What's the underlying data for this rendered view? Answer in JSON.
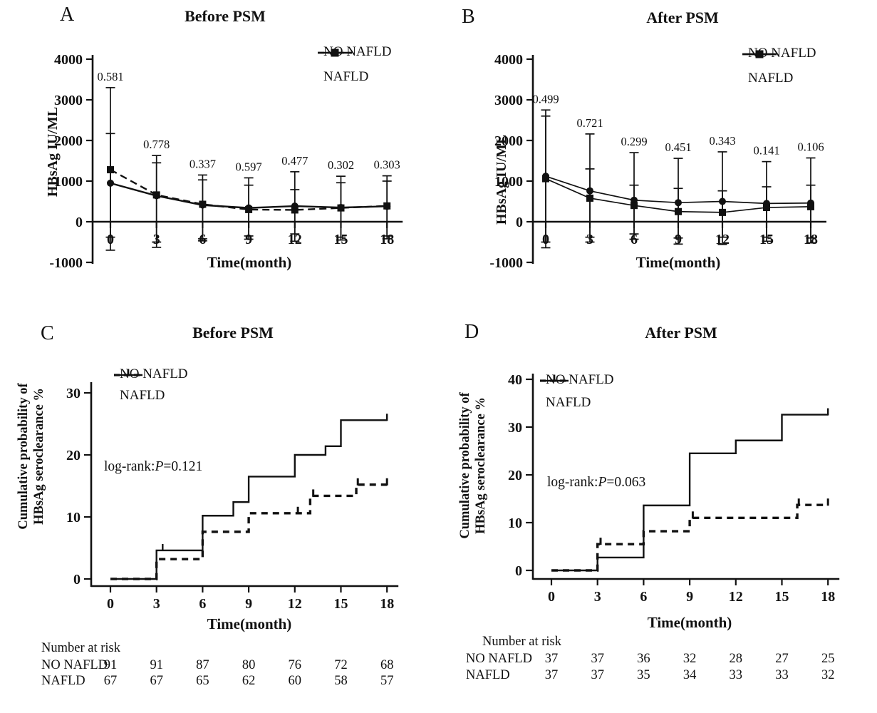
{
  "ink": "#111111",
  "background": "#ffffff",
  "chart_data": [
    {
      "id": "A",
      "letter": "A",
      "title": "Before PSM",
      "type": "errorbar",
      "ylabel": "HBsAg IU/ML",
      "xlabel": "Time(month)",
      "ylim": [
        -1000,
        4000
      ],
      "yticks": [
        -1000,
        0,
        1000,
        2000,
        3000,
        4000
      ],
      "xticks": [
        0,
        3,
        6,
        9,
        12,
        15,
        18
      ],
      "p_values": [
        "0.581",
        "0.778",
        "0.337",
        "0.597",
        "0.477",
        "0.302",
        "0.303"
      ],
      "legend": [
        {
          "label": "NO NAFLD",
          "line": "solid",
          "marker": "circle"
        },
        {
          "label": "NAFLD",
          "line": "dashed",
          "marker": "square"
        }
      ],
      "series": [
        {
          "name": "NO NAFLD",
          "line": "solid",
          "marker": "circle",
          "values": [
            950,
            640,
            410,
            340,
            385,
            350,
            380
          ],
          "upper": [
            2170,
            1450,
            1030,
            900,
            790,
            960,
            1000
          ],
          "lower": [
            -380,
            -500,
            -420,
            -350,
            -300,
            -380,
            -350
          ]
        },
        {
          "name": "NAFLD",
          "line": "dashed",
          "marker": "square",
          "values": [
            1280,
            660,
            430,
            300,
            290,
            340,
            390
          ],
          "upper": [
            3300,
            1630,
            1150,
            1080,
            1230,
            1120,
            1130
          ],
          "lower": [
            -700,
            -630,
            -470,
            -430,
            -480,
            -450,
            -420
          ]
        }
      ]
    },
    {
      "id": "B",
      "letter": "B",
      "title": "After PSM",
      "type": "errorbar",
      "ylabel": "HBsAg IU/ML",
      "xlabel": "Time(month)",
      "ylim": [
        -1000,
        4000
      ],
      "yticks": [
        -1000,
        0,
        1000,
        2000,
        3000,
        4000
      ],
      "xticks": [
        0,
        3,
        6,
        9,
        12,
        15,
        18
      ],
      "p_values": [
        "0.499",
        "0.721",
        "0.299",
        "0.451",
        "0.343",
        "0.141",
        "0.106"
      ],
      "legend": [
        {
          "label": "NO NAFLD",
          "line": "solid",
          "marker": "circle"
        },
        {
          "label": "NAFLD",
          "line": "solid",
          "marker": "square"
        }
      ],
      "series": [
        {
          "name": "NO NAFLD",
          "line": "solid",
          "marker": "circle",
          "values": [
            1120,
            760,
            530,
            470,
            500,
            450,
            460
          ],
          "upper": [
            2750,
            2160,
            1700,
            1560,
            1720,
            1480,
            1570
          ],
          "lower": [
            -500,
            -380,
            -300,
            -400,
            -380,
            -380,
            -400
          ]
        },
        {
          "name": "NAFLD",
          "line": "solid",
          "marker": "square",
          "values": [
            1060,
            580,
            400,
            250,
            230,
            350,
            370
          ],
          "upper": [
            2600,
            1300,
            900,
            820,
            760,
            860,
            900
          ],
          "lower": [
            -640,
            -500,
            -430,
            -550,
            -560,
            -480,
            -520
          ]
        }
      ]
    },
    {
      "id": "C",
      "letter": "C",
      "title": "Before PSM",
      "type": "km",
      "ylabel_lines": [
        "Cumulative probability of",
        "HBsAg seroclearance %"
      ],
      "xlabel": "Time(month)",
      "ylim": [
        0,
        32
      ],
      "yticks": [
        0,
        10,
        20,
        30
      ],
      "xticks": [
        0,
        3,
        6,
        9,
        12,
        15,
        18
      ],
      "logrank": {
        "prefix": "log-rank:",
        "p": "P",
        "value": "=0.121"
      },
      "legend": [
        {
          "label": "NO NAFLD",
          "line": "solid"
        },
        {
          "label": "NAFLD",
          "line": "dashed"
        }
      ],
      "series": [
        {
          "name": "NO NAFLD",
          "line": "solid",
          "steps": [
            [
              0,
              0
            ],
            [
              3,
              4.6
            ],
            [
              6,
              10.2
            ],
            [
              8,
              12.4
            ],
            [
              9,
              16.5
            ],
            [
              12,
              20.0
            ],
            [
              14,
              21.4
            ],
            [
              15,
              25.6
            ],
            [
              18,
              25.6
            ]
          ],
          "censors": [
            [
              3.4,
              4.6
            ],
            [
              18,
              25.6
            ]
          ]
        },
        {
          "name": "NAFLD",
          "line": "dashed",
          "steps": [
            [
              0,
              0
            ],
            [
              3,
              3.2
            ],
            [
              6,
              7.6
            ],
            [
              9,
              10.6
            ],
            [
              13,
              13.4
            ],
            [
              16,
              15.2
            ],
            [
              18,
              15.2
            ]
          ],
          "censors": [
            [
              12.2,
              10.6
            ],
            [
              13.2,
              13.4
            ],
            [
              16.1,
              15.2
            ],
            [
              18,
              15.2
            ]
          ]
        }
      ],
      "risk_table": {
        "header": "Number at risk",
        "rows": [
          {
            "name": "NO NAFLD",
            "values": [
              "91",
              "91",
              "87",
              "80",
              "76",
              "72",
              "68"
            ]
          },
          {
            "name": "NAFLD",
            "values": [
              "67",
              "67",
              "65",
              "62",
              "60",
              "58",
              "57"
            ]
          }
        ]
      }
    },
    {
      "id": "D",
      "letter": "D",
      "title": "After PSM",
      "type": "km",
      "ylabel_lines": [
        "Cumulative probability of",
        "HBsAg seroclearance %"
      ],
      "xlabel": "Time(month)",
      "ylim": [
        0,
        42
      ],
      "yticks": [
        0,
        10,
        20,
        30,
        40
      ],
      "xticks": [
        0,
        3,
        6,
        9,
        12,
        15,
        18
      ],
      "logrank": {
        "prefix": "log-rank:",
        "p": "P",
        "value": "=0.063"
      },
      "legend": [
        {
          "label": "NO NAFLD",
          "line": "solid"
        },
        {
          "label": "NAFLD",
          "line": "dashed"
        }
      ],
      "series": [
        {
          "name": "NO NAFLD",
          "line": "solid",
          "steps": [
            [
              0,
              0
            ],
            [
              3,
              2.7
            ],
            [
              6,
              13.6
            ],
            [
              9,
              24.5
            ],
            [
              12,
              27.2
            ],
            [
              15,
              32.6
            ],
            [
              18,
              32.6
            ]
          ],
          "censors": [
            [
              18,
              32.6
            ]
          ]
        },
        {
          "name": "NAFLD",
          "line": "dashed",
          "steps": [
            [
              0,
              0
            ],
            [
              3,
              5.5
            ],
            [
              6,
              8.2
            ],
            [
              9,
              11.0
            ],
            [
              16,
              13.7
            ],
            [
              18,
              13.7
            ]
          ],
          "censors": [
            [
              3.2,
              5.5
            ],
            [
              9.2,
              11.0
            ],
            [
              16.1,
              13.7
            ],
            [
              18,
              13.7
            ]
          ]
        }
      ],
      "risk_table": {
        "header": "Number at risk",
        "rows": [
          {
            "name": "NO NAFLD",
            "values": [
              "37",
              "37",
              "36",
              "32",
              "28",
              "27",
              "25"
            ]
          },
          {
            "name": "NAFLD",
            "values": [
              "37",
              "37",
              "35",
              "34",
              "33",
              "33",
              "32"
            ]
          }
        ]
      }
    }
  ]
}
